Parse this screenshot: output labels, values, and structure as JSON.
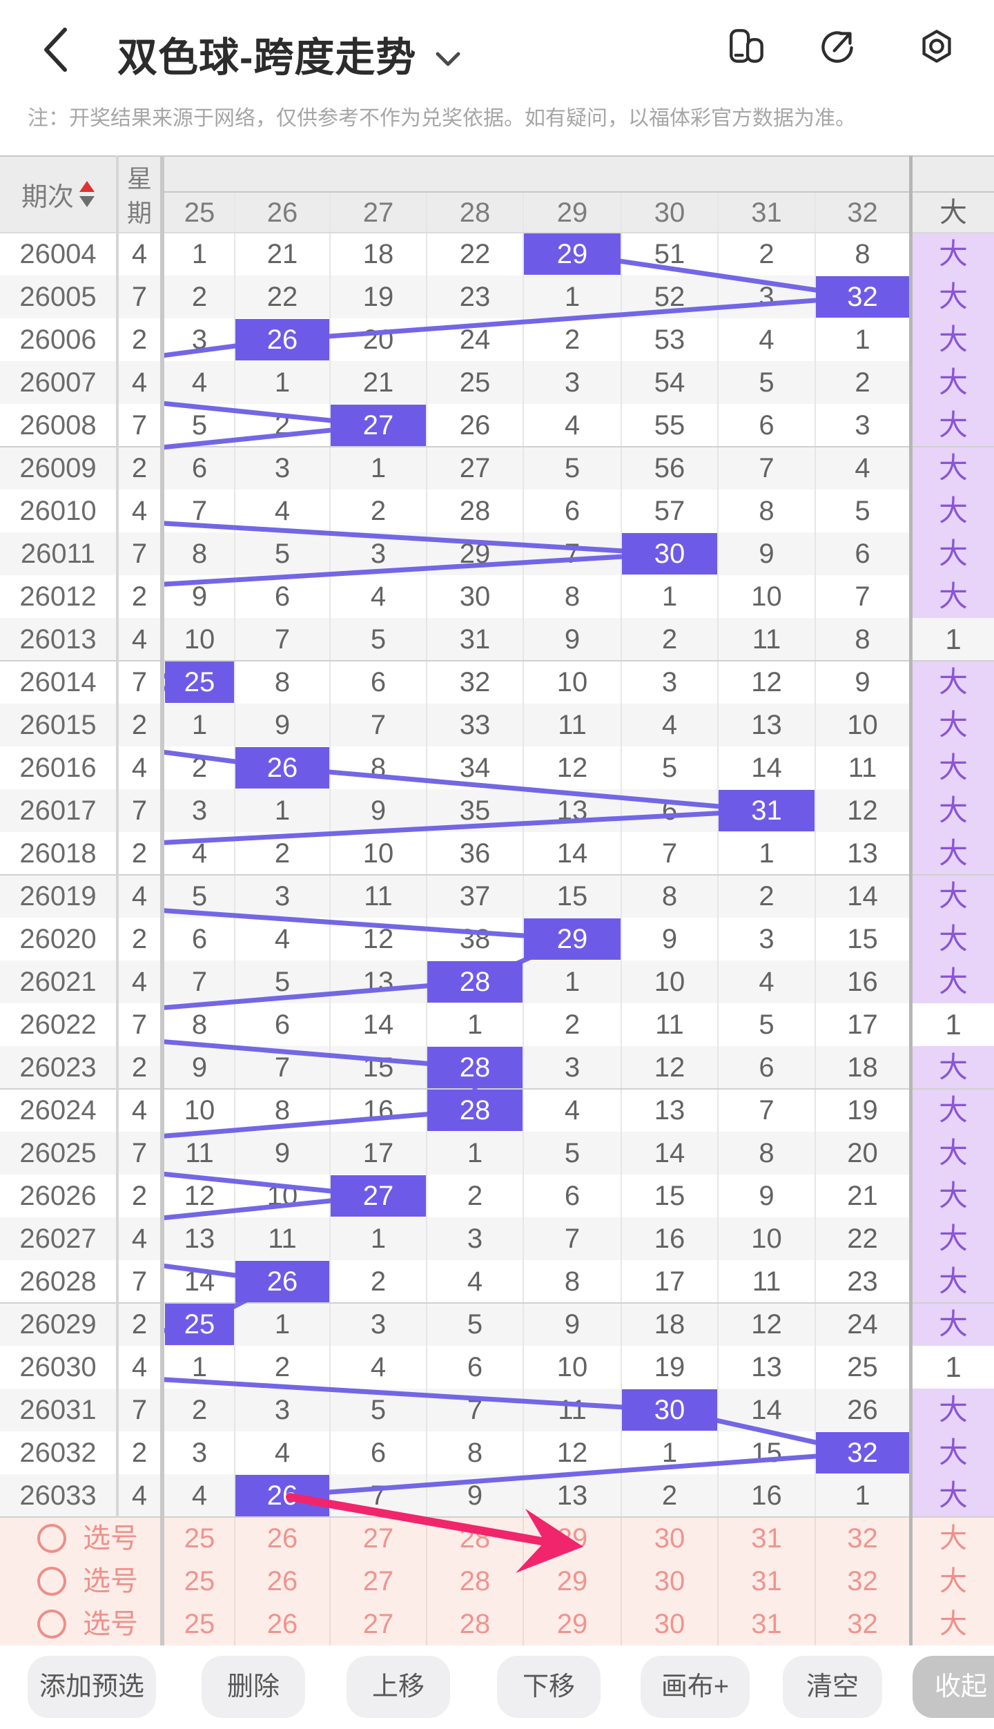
{
  "app_bar": {
    "title": "双色球-跨度走势",
    "icons": [
      "multi-window-icon",
      "share-icon",
      "settings-icon"
    ]
  },
  "notice": "注：开奖结果来源于网络，仅供参考不作为兑奖依据。如有疑问，以福体彩官方数据为准。",
  "table": {
    "issue_header": "期次",
    "week_header_chars": [
      "星",
      "期"
    ],
    "number_headers": [
      "25",
      "26",
      "27",
      "28",
      "29",
      "30",
      "31",
      "32"
    ],
    "big_header": "大",
    "group_size": 5,
    "rows": [
      {
        "issue": "26004",
        "week": "4",
        "cells": [
          "1",
          "21",
          "18",
          "22",
          "29",
          "51",
          "2",
          "8"
        ],
        "hl": 4,
        "big": "大"
      },
      {
        "issue": "26005",
        "week": "7",
        "cells": [
          "2",
          "22",
          "19",
          "23",
          "1",
          "52",
          "3",
          "32"
        ],
        "hl": 7,
        "big": "大"
      },
      {
        "issue": "26006",
        "week": "2",
        "cells": [
          "3",
          "26",
          "20",
          "24",
          "2",
          "53",
          "4",
          "1"
        ],
        "hl": 1,
        "big": "大"
      },
      {
        "issue": "26007",
        "week": "4",
        "cells": [
          "4",
          "1",
          "21",
          "25",
          "3",
          "54",
          "5",
          "2"
        ],
        "hl": null,
        "big": "大"
      },
      {
        "issue": "26008",
        "week": "7",
        "cells": [
          "5",
          "2",
          "27",
          "26",
          "4",
          "55",
          "6",
          "3"
        ],
        "hl": 2,
        "big": "大"
      },
      {
        "issue": "26009",
        "week": "2",
        "cells": [
          "6",
          "3",
          "1",
          "27",
          "5",
          "56",
          "7",
          "4"
        ],
        "hl": null,
        "big": "大"
      },
      {
        "issue": "26010",
        "week": "4",
        "cells": [
          "7",
          "4",
          "2",
          "28",
          "6",
          "57",
          "8",
          "5"
        ],
        "hl": null,
        "big": "大"
      },
      {
        "issue": "26011",
        "week": "7",
        "cells": [
          "8",
          "5",
          "3",
          "29",
          "7",
          "30",
          "9",
          "6"
        ],
        "hl": 5,
        "big": "大"
      },
      {
        "issue": "26012",
        "week": "2",
        "cells": [
          "9",
          "6",
          "4",
          "30",
          "8",
          "1",
          "10",
          "7"
        ],
        "hl": null,
        "big": "大"
      },
      {
        "issue": "26013",
        "week": "4",
        "cells": [
          "10",
          "7",
          "5",
          "31",
          "9",
          "2",
          "11",
          "8"
        ],
        "hl": null,
        "big": "1"
      },
      {
        "issue": "26014",
        "week": "7",
        "cells": [
          "25",
          "8",
          "6",
          "32",
          "10",
          "3",
          "12",
          "9"
        ],
        "hl": 0,
        "big": "大"
      },
      {
        "issue": "26015",
        "week": "2",
        "cells": [
          "1",
          "9",
          "7",
          "33",
          "11",
          "4",
          "13",
          "10"
        ],
        "hl": null,
        "big": "大"
      },
      {
        "issue": "26016",
        "week": "4",
        "cells": [
          "2",
          "26",
          "8",
          "34",
          "12",
          "5",
          "14",
          "11"
        ],
        "hl": 1,
        "big": "大"
      },
      {
        "issue": "26017",
        "week": "7",
        "cells": [
          "3",
          "1",
          "9",
          "35",
          "13",
          "6",
          "31",
          "12"
        ],
        "hl": 6,
        "big": "大"
      },
      {
        "issue": "26018",
        "week": "2",
        "cells": [
          "4",
          "2",
          "10",
          "36",
          "14",
          "7",
          "1",
          "13"
        ],
        "hl": null,
        "big": "大"
      },
      {
        "issue": "26019",
        "week": "4",
        "cells": [
          "5",
          "3",
          "11",
          "37",
          "15",
          "8",
          "2",
          "14"
        ],
        "hl": null,
        "big": "大"
      },
      {
        "issue": "26020",
        "week": "2",
        "cells": [
          "6",
          "4",
          "12",
          "38",
          "29",
          "9",
          "3",
          "15"
        ],
        "hl": 4,
        "big": "大"
      },
      {
        "issue": "26021",
        "week": "4",
        "cells": [
          "7",
          "5",
          "13",
          "28",
          "1",
          "10",
          "4",
          "16"
        ],
        "hl": 3,
        "big": "大"
      },
      {
        "issue": "26022",
        "week": "7",
        "cells": [
          "8",
          "6",
          "14",
          "1",
          "2",
          "11",
          "5",
          "17"
        ],
        "hl": null,
        "big": "1"
      },
      {
        "issue": "26023",
        "week": "2",
        "cells": [
          "9",
          "7",
          "15",
          "28",
          "3",
          "12",
          "6",
          "18"
        ],
        "hl": 3,
        "big": "大"
      },
      {
        "issue": "26024",
        "week": "4",
        "cells": [
          "10",
          "8",
          "16",
          "28",
          "4",
          "13",
          "7",
          "19"
        ],
        "hl": 3,
        "big": "大"
      },
      {
        "issue": "26025",
        "week": "7",
        "cells": [
          "11",
          "9",
          "17",
          "1",
          "5",
          "14",
          "8",
          "20"
        ],
        "hl": null,
        "big": "大"
      },
      {
        "issue": "26026",
        "week": "2",
        "cells": [
          "12",
          "10",
          "27",
          "2",
          "6",
          "15",
          "9",
          "21"
        ],
        "hl": 2,
        "big": "大"
      },
      {
        "issue": "26027",
        "week": "4",
        "cells": [
          "13",
          "11",
          "1",
          "3",
          "7",
          "16",
          "10",
          "22"
        ],
        "hl": null,
        "big": "大"
      },
      {
        "issue": "26028",
        "week": "7",
        "cells": [
          "14",
          "26",
          "2",
          "4",
          "8",
          "17",
          "11",
          "23"
        ],
        "hl": 1,
        "big": "大"
      },
      {
        "issue": "26029",
        "week": "2",
        "cells": [
          "25",
          "1",
          "3",
          "5",
          "9",
          "18",
          "12",
          "24"
        ],
        "hl": 0,
        "big": "大"
      },
      {
        "issue": "26030",
        "week": "4",
        "cells": [
          "1",
          "2",
          "4",
          "6",
          "10",
          "19",
          "13",
          "25"
        ],
        "hl": null,
        "big": "1"
      },
      {
        "issue": "26031",
        "week": "7",
        "cells": [
          "2",
          "3",
          "5",
          "7",
          "11",
          "30",
          "14",
          "26"
        ],
        "hl": 5,
        "big": "大"
      },
      {
        "issue": "26032",
        "week": "2",
        "cells": [
          "3",
          "4",
          "6",
          "8",
          "12",
          "1",
          "15",
          "32"
        ],
        "hl": 7,
        "big": "大"
      },
      {
        "issue": "26033",
        "week": "4",
        "cells": [
          "4",
          "26",
          "7",
          "9",
          "13",
          "2",
          "16",
          "1"
        ],
        "hl": 1,
        "big": "大"
      }
    ]
  },
  "picks": {
    "rows": [
      {
        "label": "选号",
        "values": [
          "25",
          "26",
          "27",
          "28",
          "29",
          "30",
          "31",
          "32"
        ],
        "big": "大"
      },
      {
        "label": "选号",
        "values": [
          "25",
          "26",
          "27",
          "28",
          "29",
          "30",
          "31",
          "32"
        ],
        "big": "大"
      },
      {
        "label": "选号",
        "values": [
          "25",
          "26",
          "27",
          "28",
          "29",
          "30",
          "31",
          "32"
        ],
        "big": "大"
      }
    ]
  },
  "toolbar": {
    "buttons": [
      "添加预选",
      "删除",
      "上移",
      "下移",
      "画布+",
      "清空"
    ],
    "collapse_label": "收起"
  },
  "colors": {
    "accent_purple": "#6d5be8",
    "trend_line": "#7366e6",
    "big_cell_bg": "#e7d4f8",
    "big_cell_text": "#8a55d6",
    "pick_bg": "#fdede8",
    "pick_text": "#ef908c",
    "header_bg": "#ececec",
    "row_alt": "#f5f5f6",
    "annotation_arrow": "#f1256b"
  }
}
